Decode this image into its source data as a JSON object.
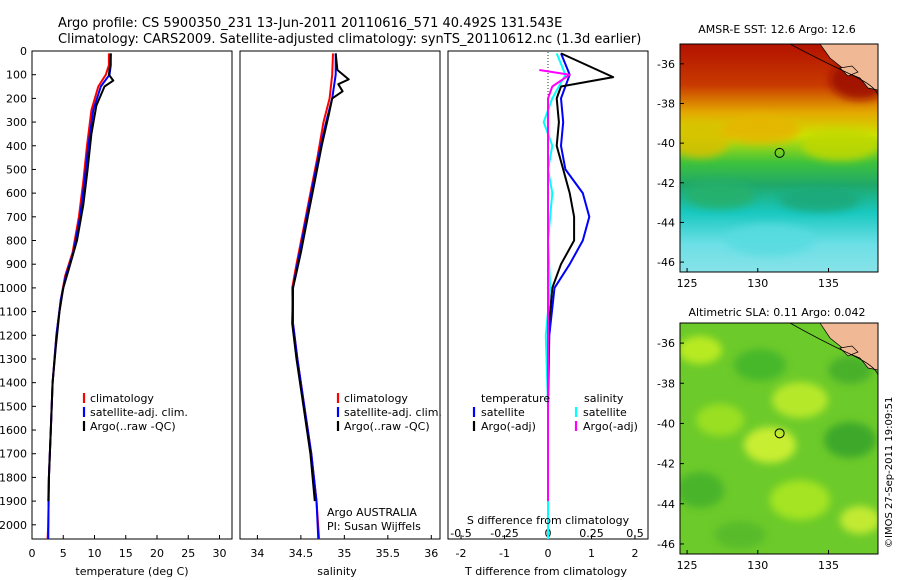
{
  "header": {
    "line1": "Argo profile: CS 5900350_231 13-Jun-2011 20110616_571 40.492S 131.543E",
    "line2": "Climatology: CARS2009. Satellite-adjusted climatology: synTS_20110612.nc (1.3d earlier)"
  },
  "copyright": "©IMOS 27-Sep-2011 19:09:51",
  "colors": {
    "climatology": "#ff0000",
    "satellite": "#0000ff",
    "argo": "#000000",
    "s_satellite": "#00ffff",
    "s_argo": "#ff00ff"
  },
  "chart_data": [
    {
      "type": "line",
      "panel": "temperature",
      "xlabel": "temperature (deg C)",
      "ylabel": "",
      "xlim": [
        0,
        32
      ],
      "ylim": [
        2060,
        0
      ],
      "x_ticks": [
        0,
        5,
        10,
        15,
        20,
        25,
        30
      ],
      "y_ticks": [
        0,
        100,
        200,
        300,
        400,
        500,
        600,
        700,
        800,
        900,
        1000,
        1100,
        1200,
        1300,
        1400,
        1500,
        1600,
        1700,
        1800,
        1900,
        2000
      ],
      "legend": [
        "climatology",
        "satellite-adj. clim.",
        "Argo(..raw -QC)"
      ],
      "legend_position": "lower-center",
      "series": [
        {
          "name": "climatology",
          "color": "#ff0000",
          "points": [
            [
              12.3,
              10
            ],
            [
              12.3,
              60
            ],
            [
              11.8,
              100
            ],
            [
              10.6,
              150
            ],
            [
              9.5,
              250
            ],
            [
              8.8,
              400
            ],
            [
              8.2,
              550
            ],
            [
              7.5,
              700
            ],
            [
              6.5,
              850
            ],
            [
              5.3,
              950
            ],
            [
              4.6,
              1050
            ],
            [
              3.9,
              1200
            ],
            [
              3.3,
              1400
            ],
            [
              3.0,
              1600
            ],
            [
              2.7,
              1800
            ],
            [
              2.6,
              2000
            ],
            [
              2.5,
              2060
            ]
          ]
        },
        {
          "name": "satellite-adj. clim.",
          "color": "#0000ff",
          "points": [
            [
              12.6,
              10
            ],
            [
              12.6,
              60
            ],
            [
              12.4,
              100
            ],
            [
              11.0,
              150
            ],
            [
              9.8,
              250
            ],
            [
              9.0,
              400
            ],
            [
              8.4,
              550
            ],
            [
              7.7,
              700
            ],
            [
              6.6,
              850
            ],
            [
              5.4,
              950
            ],
            [
              4.6,
              1050
            ],
            [
              3.9,
              1200
            ],
            [
              3.3,
              1400
            ],
            [
              3.0,
              1600
            ],
            [
              2.7,
              1800
            ],
            [
              2.6,
              2000
            ],
            [
              2.6,
              2060
            ]
          ]
        },
        {
          "name": "Argo(..raw -QC)",
          "color": "#000000",
          "points": [
            [
              12.6,
              10
            ],
            [
              12.5,
              60
            ],
            [
              12.3,
              100
            ],
            [
              13.0,
              125
            ],
            [
              11.6,
              150
            ],
            [
              10.3,
              230
            ],
            [
              9.5,
              350
            ],
            [
              8.9,
              500
            ],
            [
              8.2,
              650
            ],
            [
              7.2,
              800
            ],
            [
              5.9,
              920
            ],
            [
              5.0,
              1000
            ],
            [
              4.4,
              1100
            ],
            [
              3.8,
              1250
            ],
            [
              3.3,
              1400
            ],
            [
              3.0,
              1600
            ],
            [
              2.7,
              1800
            ],
            [
              2.6,
              1900
            ]
          ]
        }
      ]
    },
    {
      "type": "line",
      "panel": "salinity",
      "xlabel": "salinity",
      "ylabel": "",
      "xlim": [
        33.8,
        36.1
      ],
      "ylim": [
        2060,
        0
      ],
      "x_ticks": [
        34,
        34.5,
        35,
        35.5,
        36
      ],
      "x_tick_labels": [
        "34",
        "34.5",
        "35",
        "35.5",
        "36"
      ],
      "legend": [
        "climatology",
        "satellite-adj. clim.",
        "Argo(..raw -QC)"
      ],
      "legend_position": "lower-right",
      "annotation": [
        "Argo AUSTRALIA",
        "PI: Susan Wijffels"
      ],
      "series": [
        {
          "name": "climatology",
          "color": "#ff0000",
          "points": [
            [
              34.87,
              10
            ],
            [
              34.86,
              100
            ],
            [
              34.83,
              200
            ],
            [
              34.76,
              300
            ],
            [
              34.69,
              450
            ],
            [
              34.61,
              600
            ],
            [
              34.53,
              750
            ],
            [
              34.45,
              900
            ],
            [
              34.4,
              1000
            ],
            [
              34.41,
              1150
            ],
            [
              34.46,
              1300
            ],
            [
              34.54,
              1500
            ],
            [
              34.62,
              1700
            ],
            [
              34.68,
              1900
            ],
            [
              34.71,
              2060
            ]
          ]
        },
        {
          "name": "satellite-adj. clim.",
          "color": "#0000ff",
          "points": [
            [
              34.9,
              10
            ],
            [
              34.9,
              100
            ],
            [
              34.86,
              200
            ],
            [
              34.79,
              300
            ],
            [
              34.7,
              450
            ],
            [
              34.62,
              600
            ],
            [
              34.54,
              750
            ],
            [
              34.46,
              900
            ],
            [
              34.41,
              1000
            ],
            [
              34.41,
              1150
            ],
            [
              34.46,
              1300
            ],
            [
              34.54,
              1500
            ],
            [
              34.62,
              1700
            ],
            [
              34.68,
              1900
            ],
            [
              34.7,
              2060
            ]
          ]
        },
        {
          "name": "Argo(..raw -QC)",
          "color": "#000000",
          "points": [
            [
              34.9,
              10
            ],
            [
              34.92,
              80
            ],
            [
              35.05,
              120
            ],
            [
              34.93,
              140
            ],
            [
              34.98,
              170
            ],
            [
              34.86,
              200
            ],
            [
              34.82,
              270
            ],
            [
              34.74,
              400
            ],
            [
              34.66,
              550
            ],
            [
              34.58,
              700
            ],
            [
              34.5,
              850
            ],
            [
              34.44,
              950
            ],
            [
              34.41,
              1000
            ],
            [
              34.4,
              1150
            ],
            [
              34.45,
              1300
            ],
            [
              34.53,
              1500
            ],
            [
              34.61,
              1700
            ],
            [
              34.66,
              1900
            ]
          ]
        }
      ]
    },
    {
      "type": "line",
      "panel": "difference",
      "xlabel": "T difference from climatology",
      "top_label": "S difference from climatology",
      "xlim": [
        -2.3,
        2.3
      ],
      "ylim": [
        2060,
        0
      ],
      "x_ticks": [
        -2,
        -1,
        0,
        1,
        2
      ],
      "s_tick_labels": [
        "-0.5",
        "-0.25",
        "0",
        "0.25",
        "0.5"
      ],
      "legend_groups": [
        {
          "title": "temperature",
          "entries": [
            "satellite",
            "Argo(-adj)"
          ]
        },
        {
          "title": "salinity",
          "entries": [
            "satellite",
            "Argo(-adj)"
          ]
        }
      ],
      "legend_position": "lower-center",
      "series": [
        {
          "name": "satellite",
          "group": "temperature",
          "color": "#0000ff",
          "points": [
            [
              0.3,
              10
            ],
            [
              0.5,
              100
            ],
            [
              0.3,
              200
            ],
            [
              0.35,
              300
            ],
            [
              0.3,
              400
            ],
            [
              0.4,
              500
            ],
            [
              0.8,
              600
            ],
            [
              0.95,
              700
            ],
            [
              0.8,
              800
            ],
            [
              0.5,
              900
            ],
            [
              0.15,
              1000
            ],
            [
              0.03,
              1200
            ],
            [
              0.0,
              1500
            ],
            [
              0.0,
              2060
            ]
          ]
        },
        {
          "name": "Argo(-adj)",
          "group": "temperature",
          "color": "#000000",
          "points": [
            [
              0.3,
              10
            ],
            [
              1.5,
              110
            ],
            [
              0.3,
              150
            ],
            [
              0.2,
              200
            ],
            [
              0.25,
              300
            ],
            [
              0.2,
              400
            ],
            [
              0.35,
              500
            ],
            [
              0.5,
              600
            ],
            [
              0.6,
              700
            ],
            [
              0.6,
              800
            ],
            [
              0.3,
              900
            ],
            [
              0.1,
              1000
            ],
            [
              0.0,
              1200
            ],
            [
              0.0,
              1900
            ]
          ]
        },
        {
          "name": "satellite",
          "group": "salinity",
          "color": "#00ffff",
          "points": [
            [
              0.2,
              10
            ],
            [
              0.4,
              100
            ],
            [
              0.1,
              200
            ],
            [
              -0.1,
              300
            ],
            [
              0.1,
              400
            ],
            [
              0.0,
              500
            ],
            [
              0.1,
              600
            ],
            [
              0.0,
              800
            ],
            [
              0.05,
              1000
            ],
            [
              -0.05,
              1200
            ],
            [
              0.0,
              1500
            ],
            [
              0.0,
              2060
            ]
          ]
        },
        {
          "name": "Argo(-adj)",
          "group": "salinity",
          "color": "#ff00ff",
          "points": [
            [
              -0.2,
              80
            ],
            [
              0.5,
              100
            ],
            [
              0.1,
              150
            ],
            [
              0.0,
              200
            ],
            [
              0.0,
              1900
            ]
          ]
        }
      ]
    },
    {
      "type": "heatmap",
      "panel": "sst_map",
      "title": "AMSR-E SST: 12.6 Argo: 12.6",
      "xlim": [
        124.5,
        138.5
      ],
      "ylim": [
        -46.5,
        -35
      ],
      "x_ticks": [
        125,
        130,
        135
      ],
      "y_ticks": [
        -36,
        -38,
        -40,
        -42,
        -44,
        -46
      ],
      "marker": {
        "lon": 131.543,
        "lat": -40.492
      }
    },
    {
      "type": "heatmap",
      "panel": "sla_map",
      "title": "Altimetric SLA: 0.11 Argo: 0.042",
      "xlim": [
        124.5,
        138.5
      ],
      "ylim": [
        -46.5,
        -35
      ],
      "x_ticks": [
        125,
        130,
        135
      ],
      "y_ticks": [
        -36,
        -38,
        -40,
        -42,
        -44,
        -46
      ],
      "marker": {
        "lon": 131.543,
        "lat": -40.492
      }
    }
  ]
}
